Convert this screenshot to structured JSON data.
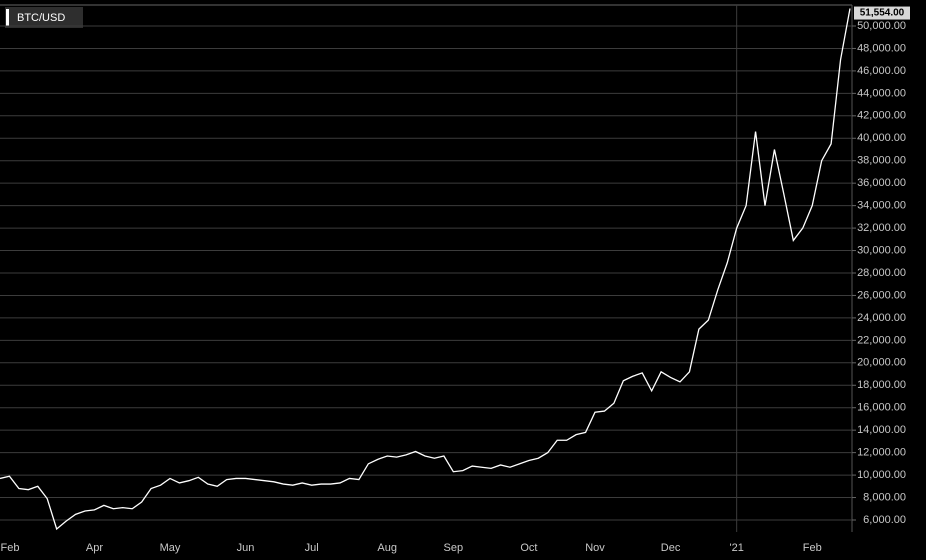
{
  "chart_data": {
    "type": "line",
    "title": "BTC/USD",
    "categories": [
      "Feb",
      null,
      null,
      null,
      null,
      null,
      null,
      null,
      null,
      null,
      "Apr",
      null,
      null,
      null,
      null,
      null,
      null,
      null,
      "May",
      null,
      null,
      null,
      null,
      null,
      null,
      null,
      "Jun",
      null,
      null,
      null,
      null,
      null,
      null,
      "Jul",
      null,
      null,
      null,
      null,
      null,
      null,
      null,
      "Aug",
      null,
      null,
      null,
      null,
      null,
      null,
      "Sep",
      null,
      null,
      null,
      null,
      null,
      null,
      null,
      "Oct",
      null,
      null,
      null,
      null,
      null,
      null,
      "Nov",
      null,
      null,
      null,
      null,
      null,
      null,
      null,
      "Dec",
      null,
      null,
      null,
      null,
      null,
      null,
      "'21",
      null,
      null,
      null,
      null,
      null,
      null,
      null,
      "Feb",
      null,
      null,
      null,
      null
    ],
    "series": [
      {
        "name": "BTC/USD",
        "color": "#ffffff",
        "values": [
          9700,
          9900,
          8800,
          8700,
          9000,
          7900,
          5200,
          5900,
          6500,
          6800,
          6900,
          7300,
          7000,
          7100,
          7000,
          7600,
          8800,
          9100,
          9700,
          9300,
          9500,
          9800,
          9200,
          9000,
          9600,
          9700,
          9700,
          9600,
          9500,
          9400,
          9200,
          9100,
          9300,
          9100,
          9200,
          9200,
          9300,
          9700,
          9600,
          11000,
          11400,
          11700,
          11600,
          11800,
          12100,
          11700,
          11500,
          11700,
          10300,
          10400,
          10800,
          10700,
          10600,
          10900,
          10700,
          11000,
          11300,
          11500,
          12000,
          13100,
          13100,
          13600,
          13800,
          15600,
          15700,
          16400,
          18400,
          18800,
          19100,
          17500,
          19200,
          18700,
          18300,
          19200,
          23000,
          23800,
          26500,
          28900,
          32000,
          34000,
          40600,
          34000,
          39000,
          35000,
          30900,
          32000,
          34000,
          38000,
          39500,
          47000,
          51554
        ]
      }
    ],
    "current_price": 51554,
    "current_price_label": "51,554.00",
    "ylim": [
      4930,
      51870
    ],
    "yticks": [
      {
        "value": 6000,
        "label": "6,000.00"
      },
      {
        "value": 8000,
        "label": "8,000.00"
      },
      {
        "value": 10000,
        "label": "10,000.00"
      },
      {
        "value": 12000,
        "label": "12,000.00"
      },
      {
        "value": 14000,
        "label": "14,000.00"
      },
      {
        "value": 16000,
        "label": "16,000.00"
      },
      {
        "value": 18000,
        "label": "18,000.00"
      },
      {
        "value": 20000,
        "label": "20,000.00"
      },
      {
        "value": 22000,
        "label": "22,000.00"
      },
      {
        "value": 24000,
        "label": "24,000.00"
      },
      {
        "value": 26000,
        "label": "26,000.00"
      },
      {
        "value": 28000,
        "label": "28,000.00"
      },
      {
        "value": 30000,
        "label": "30,000.00"
      },
      {
        "value": 32000,
        "label": "32,000.00"
      },
      {
        "value": 34000,
        "label": "34,000.00"
      },
      {
        "value": 36000,
        "label": "36,000.00"
      },
      {
        "value": 38000,
        "label": "38,000.00"
      },
      {
        "value": 40000,
        "label": "40,000.00"
      },
      {
        "value": 42000,
        "label": "42,000.00"
      },
      {
        "value": 44000,
        "label": "44,000.00"
      },
      {
        "value": 46000,
        "label": "46,000.00"
      },
      {
        "value": 48000,
        "label": "48,000.00"
      },
      {
        "value": 50000,
        "label": "50,000.00"
      }
    ],
    "grid": true
  }
}
